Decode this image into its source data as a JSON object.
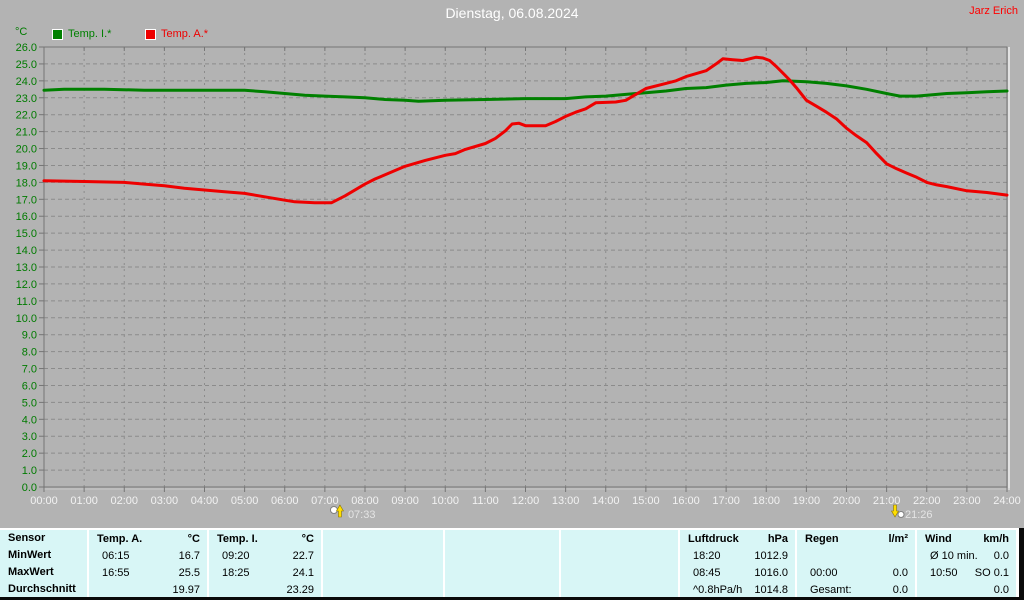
{
  "header": {
    "title": "Dienstag, 06.08.2024",
    "author": "Jarz Erich"
  },
  "legend": [
    {
      "id": "temp-i",
      "label": "Temp. I.*",
      "color": "#008000"
    },
    {
      "id": "temp-a",
      "label": "Temp. A.*",
      "color": "#ee0000"
    }
  ],
  "chart_data": {
    "type": "line",
    "title": "Dienstag, 06.08.2024",
    "grid": true,
    "grid_color": "#8b8b8b",
    "frame_color": "#757575",
    "y_axis": {
      "unit": "°C",
      "min": 0,
      "max": 26,
      "step": 1,
      "color": "#007b00",
      "tick_labels": [
        "26.0",
        "25.0",
        "24.0",
        "23.0",
        "22.0",
        "21.0",
        "20.0",
        "19.0",
        "18.0",
        "17.0",
        "16.0",
        "15.0",
        "14.0",
        "13.0",
        "12.0",
        "11.0",
        "10.0",
        "9.0",
        "8.0",
        "7.0",
        "6.0",
        "5.0",
        "4.0",
        "3.0",
        "2.0",
        "1.0",
        "0.0"
      ]
    },
    "x_axis": {
      "color": "#f2f2f2",
      "tick_labels": [
        "00:00",
        "01:00",
        "02:00",
        "03:00",
        "04:00",
        "05:00",
        "06:00",
        "07:00",
        "08:00",
        "09:00",
        "10:00",
        "11:00",
        "12:00",
        "13:00",
        "14:00",
        "15:00",
        "16:00",
        "17:00",
        "18:00",
        "19:00",
        "20:00",
        "21:00",
        "22:00",
        "23:00",
        "24:00"
      ]
    },
    "sun_markers": [
      {
        "type": "sunrise",
        "time": "07:33"
      },
      {
        "type": "sunset",
        "time": "21:26"
      }
    ],
    "series": [
      {
        "id": "temp-i",
        "name": "Temp. I.*",
        "color": "#008000",
        "points": [
          [
            "00:00",
            23.45
          ],
          [
            "00:30",
            23.5
          ],
          [
            "01:30",
            23.5
          ],
          [
            "02:30",
            23.45
          ],
          [
            "05:00",
            23.45
          ],
          [
            "05:30",
            23.35
          ],
          [
            "06:00",
            23.25
          ],
          [
            "06:30",
            23.15
          ],
          [
            "07:00",
            23.1
          ],
          [
            "07:30",
            23.05
          ],
          [
            "08:00",
            23.0
          ],
          [
            "08:30",
            22.9
          ],
          [
            "09:00",
            22.85
          ],
          [
            "09:20",
            22.8
          ],
          [
            "10:00",
            22.85
          ],
          [
            "11:00",
            22.9
          ],
          [
            "12:00",
            22.95
          ],
          [
            "13:00",
            22.95
          ],
          [
            "13:30",
            23.05
          ],
          [
            "14:00",
            23.1
          ],
          [
            "14:30",
            23.2
          ],
          [
            "15:00",
            23.3
          ],
          [
            "15:30",
            23.4
          ],
          [
            "16:00",
            23.55
          ],
          [
            "16:30",
            23.6
          ],
          [
            "17:00",
            23.75
          ],
          [
            "17:30",
            23.85
          ],
          [
            "18:00",
            23.9
          ],
          [
            "18:25",
            24.0
          ],
          [
            "19:00",
            23.95
          ],
          [
            "19:30",
            23.85
          ],
          [
            "20:00",
            23.7
          ],
          [
            "20:30",
            23.5
          ],
          [
            "21:00",
            23.25
          ],
          [
            "21:20",
            23.1
          ],
          [
            "21:45",
            23.1
          ],
          [
            "22:00",
            23.15
          ],
          [
            "22:30",
            23.25
          ],
          [
            "23:00",
            23.3
          ],
          [
            "23:30",
            23.35
          ],
          [
            "24:00",
            23.4
          ]
        ]
      },
      {
        "id": "temp-a",
        "name": "Temp. A.*",
        "color": "#ee0000",
        "points": [
          [
            "00:00",
            18.1
          ],
          [
            "01:00",
            18.05
          ],
          [
            "02:00",
            18.0
          ],
          [
            "02:30",
            17.9
          ],
          [
            "03:00",
            17.8
          ],
          [
            "03:30",
            17.65
          ],
          [
            "04:00",
            17.55
          ],
          [
            "04:30",
            17.45
          ],
          [
            "05:00",
            17.35
          ],
          [
            "05:30",
            17.15
          ],
          [
            "06:00",
            16.95
          ],
          [
            "06:15",
            16.85
          ],
          [
            "06:45",
            16.8
          ],
          [
            "07:10",
            16.8
          ],
          [
            "07:30",
            17.2
          ],
          [
            "08:00",
            17.9
          ],
          [
            "08:15",
            18.2
          ],
          [
            "08:30",
            18.45
          ],
          [
            "09:00",
            18.95
          ],
          [
            "09:30",
            19.3
          ],
          [
            "10:00",
            19.6
          ],
          [
            "10:15",
            19.7
          ],
          [
            "10:30",
            19.95
          ],
          [
            "11:00",
            20.3
          ],
          [
            "11:15",
            20.6
          ],
          [
            "11:30",
            21.05
          ],
          [
            "11:40",
            21.45
          ],
          [
            "11:50",
            21.5
          ],
          [
            "12:00",
            21.35
          ],
          [
            "12:30",
            21.35
          ],
          [
            "12:45",
            21.6
          ],
          [
            "13:00",
            21.9
          ],
          [
            "13:15",
            22.15
          ],
          [
            "13:30",
            22.35
          ],
          [
            "13:45",
            22.7
          ],
          [
            "14:15",
            22.75
          ],
          [
            "14:30",
            22.85
          ],
          [
            "14:45",
            23.2
          ],
          [
            "15:00",
            23.55
          ],
          [
            "15:30",
            23.85
          ],
          [
            "15:45",
            24.0
          ],
          [
            "16:00",
            24.25
          ],
          [
            "16:30",
            24.6
          ],
          [
            "16:45",
            25.0
          ],
          [
            "16:55",
            25.3
          ],
          [
            "17:10",
            25.25
          ],
          [
            "17:25",
            25.2
          ],
          [
            "17:45",
            25.4
          ],
          [
            "17:55",
            25.35
          ],
          [
            "18:05",
            25.2
          ],
          [
            "18:15",
            24.85
          ],
          [
            "18:25",
            24.45
          ],
          [
            "18:35",
            24.05
          ],
          [
            "18:45",
            23.6
          ],
          [
            "19:00",
            22.85
          ],
          [
            "19:15",
            22.5
          ],
          [
            "19:30",
            22.15
          ],
          [
            "19:45",
            21.75
          ],
          [
            "20:00",
            21.2
          ],
          [
            "20:15",
            20.75
          ],
          [
            "20:30",
            20.35
          ],
          [
            "20:45",
            19.7
          ],
          [
            "21:00",
            19.1
          ],
          [
            "21:15",
            18.8
          ],
          [
            "21:30",
            18.55
          ],
          [
            "21:45",
            18.3
          ],
          [
            "22:00",
            18.0
          ],
          [
            "22:15",
            17.85
          ],
          [
            "22:30",
            17.75
          ],
          [
            "23:00",
            17.5
          ],
          [
            "23:30",
            17.4
          ],
          [
            "24:00",
            17.25
          ]
        ]
      }
    ]
  },
  "summary_table": {
    "row_labels": [
      "Sensor",
      "MinWert",
      "MaxWert",
      "Durchschnitt"
    ],
    "columns": [
      {
        "name": "Temp. A.",
        "unit": "°C",
        "rows": [
          [
            "06:15",
            "16.7"
          ],
          [
            "16:55",
            "25.5"
          ],
          [
            "",
            "19.97"
          ]
        ]
      },
      {
        "name": "Temp. I.",
        "unit": "°C",
        "rows": [
          [
            "09:20",
            "22.7"
          ],
          [
            "18:25",
            "24.1"
          ],
          [
            "",
            "23.29"
          ]
        ]
      },
      {
        "name": "",
        "unit": "",
        "rows": [
          [
            "",
            ""
          ],
          [
            "",
            ""
          ],
          [
            "",
            ""
          ]
        ]
      },
      {
        "name": "",
        "unit": "",
        "rows": [
          [
            "",
            ""
          ],
          [
            "",
            ""
          ],
          [
            "",
            ""
          ]
        ]
      },
      {
        "name": "",
        "unit": "",
        "rows": [
          [
            "",
            ""
          ],
          [
            "",
            ""
          ],
          [
            "",
            ""
          ]
        ]
      },
      {
        "name": "Luftdruck",
        "unit": "hPa",
        "rows": [
          [
            "18:20",
            "1012.9"
          ],
          [
            "08:45",
            "1016.0"
          ],
          [
            "^0.8hPa/h",
            "1014.8"
          ]
        ]
      },
      {
        "name": "Regen",
        "unit": "l/m²",
        "rows": [
          [
            "",
            ""
          ],
          [
            "00:00",
            "0.0"
          ],
          [
            "Gesamt:",
            "0.0"
          ]
        ]
      },
      {
        "name": "Wind",
        "unit": "km/h",
        "rows": [
          [
            "Ø 10 min.",
            "0.0"
          ],
          [
            "10:50",
            "SO 0.1"
          ],
          [
            "",
            "0.0"
          ]
        ]
      }
    ]
  },
  "colors": {
    "background": "#b3b3b3",
    "table_background": "#d8f6f6",
    "title_text": "#ffffff",
    "author_text": "#ff0000"
  }
}
